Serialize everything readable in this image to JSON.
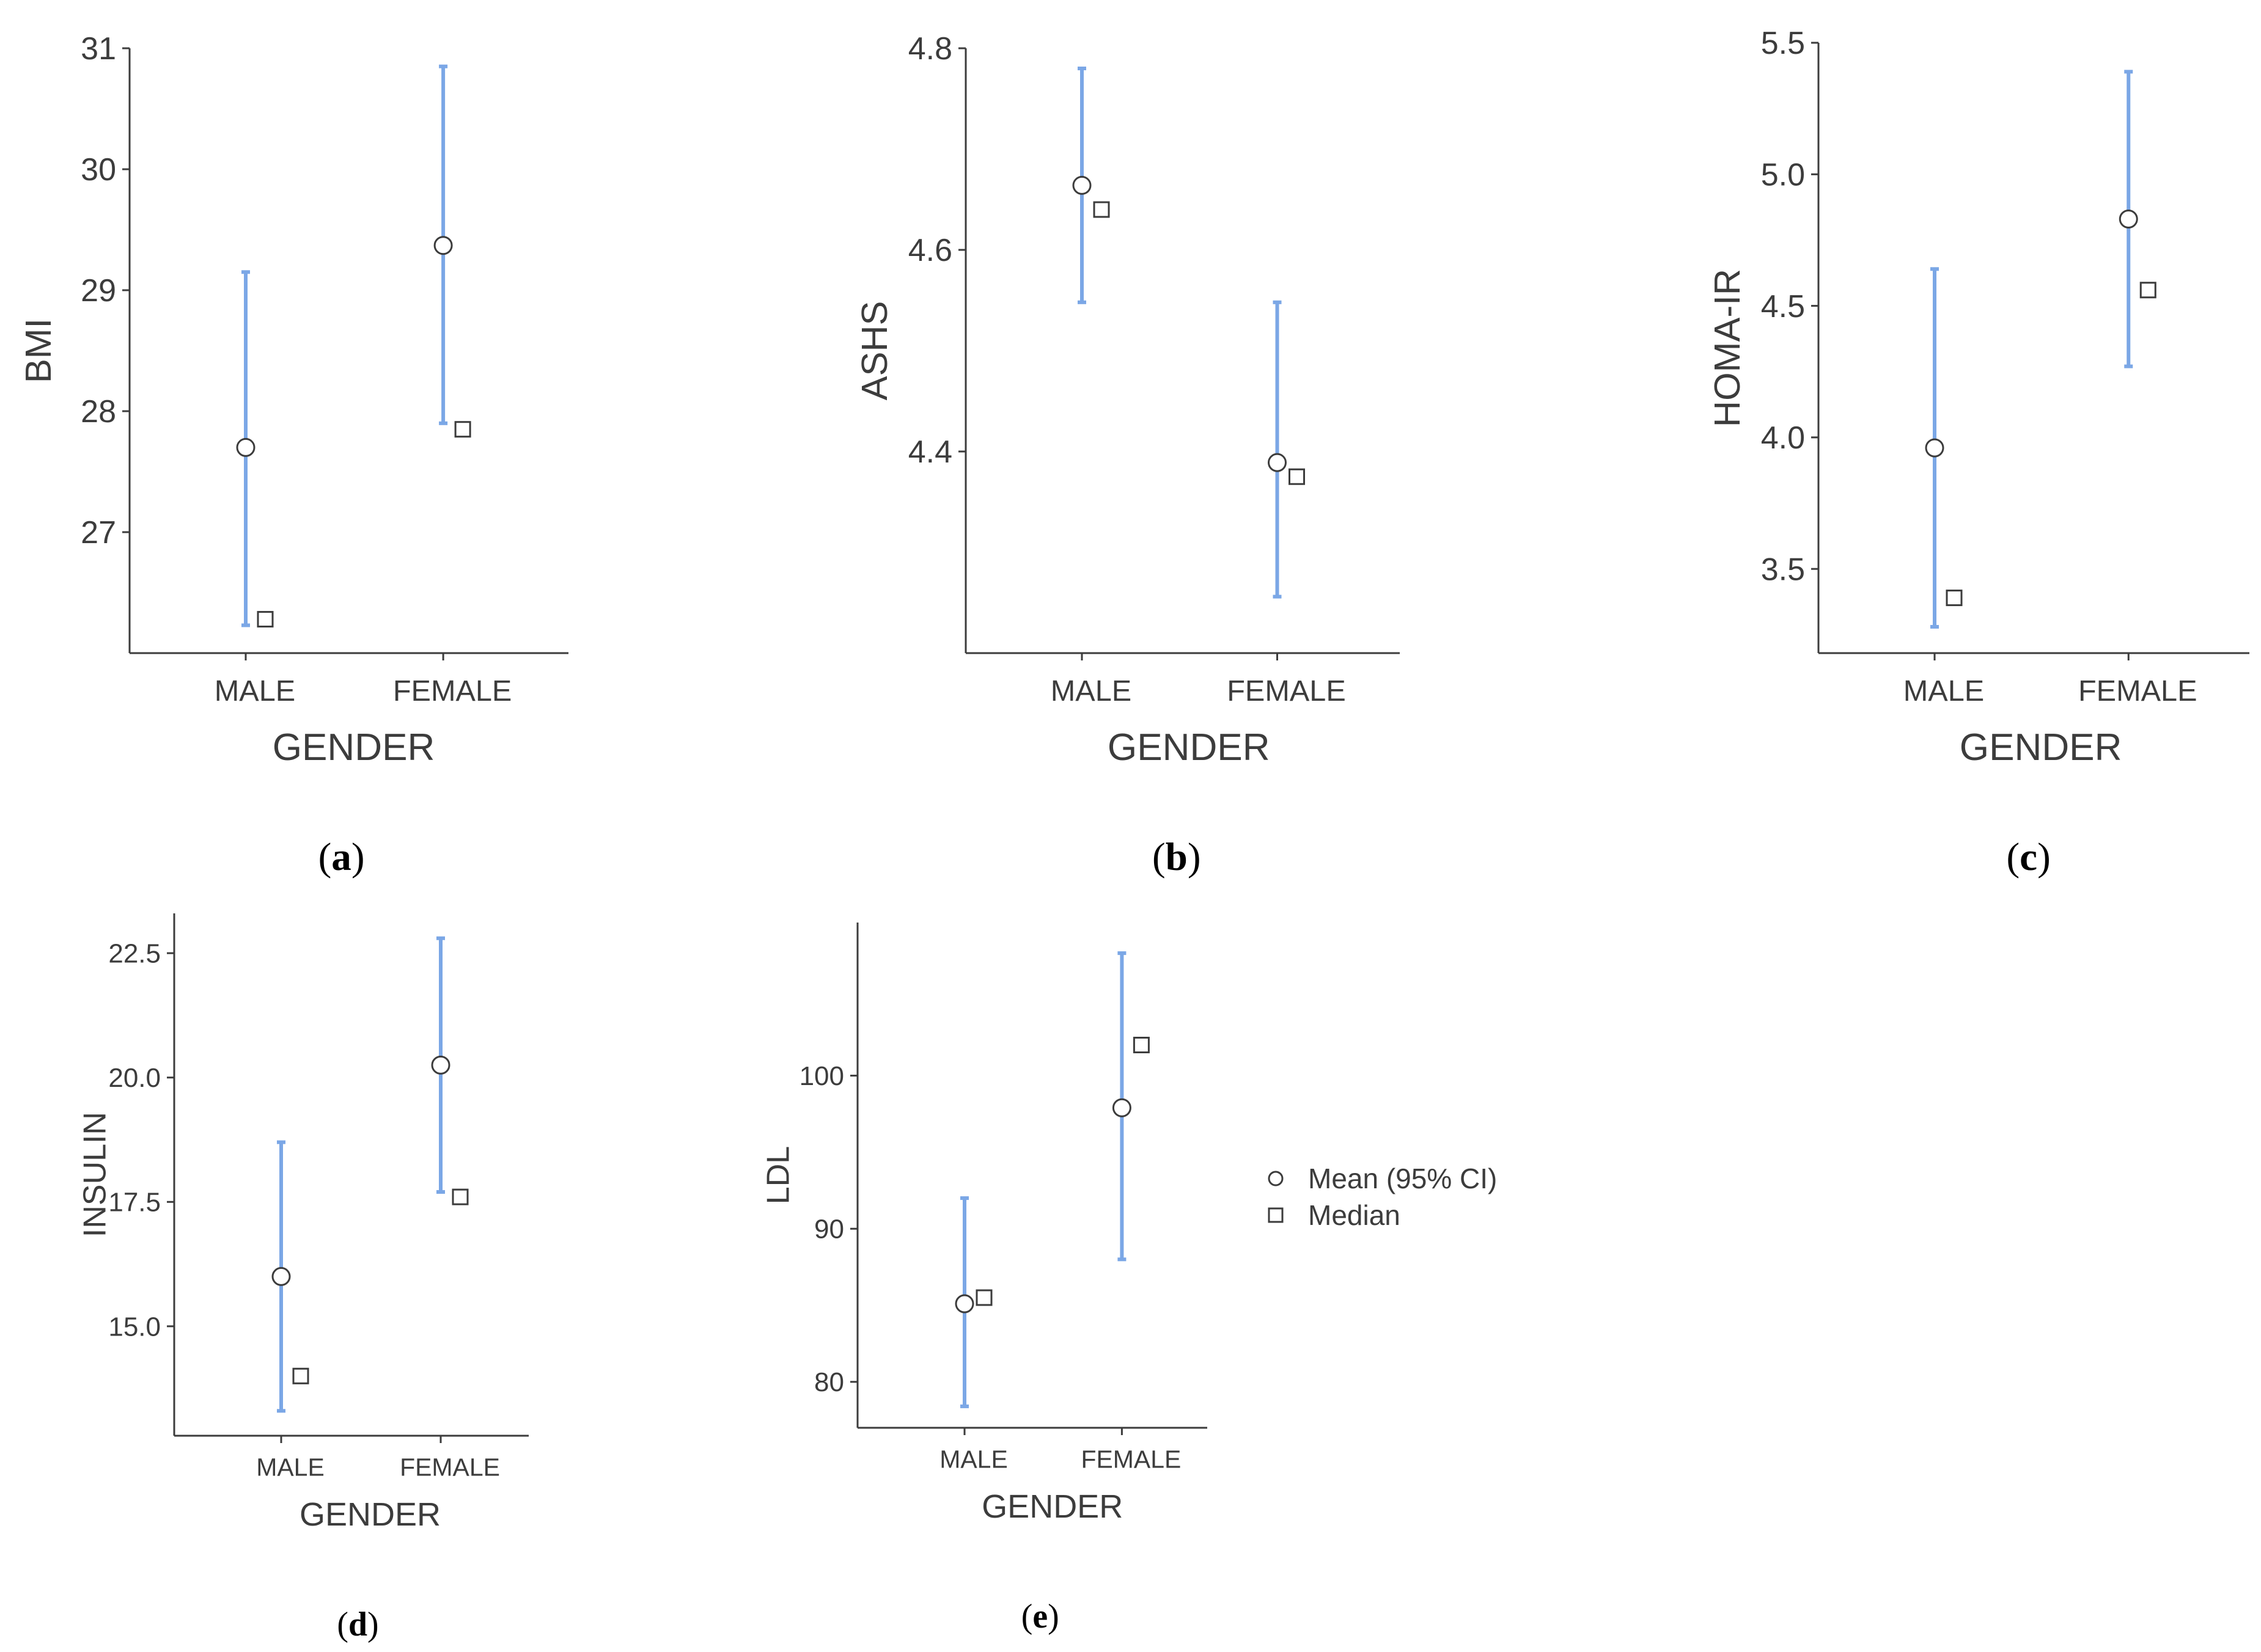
{
  "colors": {
    "ci": "#7ba7e6",
    "axis": "#3c3c3c",
    "marker_stroke": "#3c3c3c",
    "marker_fill": "#ffffff"
  },
  "legend": {
    "mean_label": "Mean (95% CI)",
    "median_label": "Median"
  },
  "chart_data": [
    {
      "id": "a",
      "caption": "a",
      "type": "scatter",
      "xlabel": "GENDER",
      "ylabel": "BMI",
      "categories": [
        "MALE",
        "FEMALE"
      ],
      "ylim": [
        26.0,
        31.0
      ],
      "yticks": [
        27,
        28,
        29,
        30,
        31
      ],
      "tick_decimals": 0,
      "mean": [
        27.7,
        29.37
      ],
      "ci_low": [
        26.23,
        27.9
      ],
      "ci_high": [
        29.15,
        30.85
      ],
      "median": [
        26.28,
        27.85
      ]
    },
    {
      "id": "b",
      "caption": "b",
      "type": "scatter",
      "xlabel": "GENDER",
      "ylabel": "ASHS",
      "categories": [
        "MALE",
        "FEMALE"
      ],
      "ylim": [
        4.2,
        4.8
      ],
      "yticks": [
        4.4,
        4.6,
        4.8
      ],
      "tick_decimals": 1,
      "mean": [
        4.664,
        4.389
      ],
      "ci_low": [
        4.548,
        4.256
      ],
      "ci_high": [
        4.78,
        4.548
      ],
      "median": [
        4.64,
        4.375
      ]
    },
    {
      "id": "c",
      "caption": "c",
      "type": "scatter",
      "xlabel": "GENDER",
      "ylabel": "HOMA-IR",
      "categories": [
        "MALE",
        "FEMALE"
      ],
      "ylim": [
        3.18,
        5.5
      ],
      "yticks": [
        3.5,
        4.0,
        4.5,
        5.0,
        5.5
      ],
      "tick_decimals": 1,
      "mean": [
        3.96,
        4.83
      ],
      "ci_low": [
        3.28,
        4.27
      ],
      "ci_high": [
        4.64,
        5.39
      ],
      "median": [
        3.39,
        4.56
      ]
    },
    {
      "id": "d",
      "caption": "d",
      "type": "scatter",
      "xlabel": "GENDER",
      "ylabel": "INSULIN",
      "categories": [
        "MALE",
        "FEMALE"
      ],
      "ylim": [
        12.8,
        23.3
      ],
      "yticks": [
        15.0,
        17.5,
        20.0,
        22.5
      ],
      "tick_decimals": 1,
      "mean": [
        16.0,
        20.25
      ],
      "ci_low": [
        13.3,
        17.7
      ],
      "ci_high": [
        18.7,
        22.8
      ],
      "median": [
        14.0,
        17.6
      ]
    },
    {
      "id": "e",
      "caption": "e",
      "type": "scatter",
      "xlabel": "GENDER",
      "ylabel": "LDL",
      "categories": [
        "MALE",
        "FEMALE"
      ],
      "ylim": [
        77,
        110
      ],
      "yticks": [
        80,
        90,
        100
      ],
      "tick_decimals": 0,
      "mean": [
        85.1,
        97.9
      ],
      "ci_low": [
        78.4,
        88.0
      ],
      "ci_high": [
        92.0,
        108.0
      ],
      "median": [
        85.5,
        102.0
      ]
    }
  ]
}
